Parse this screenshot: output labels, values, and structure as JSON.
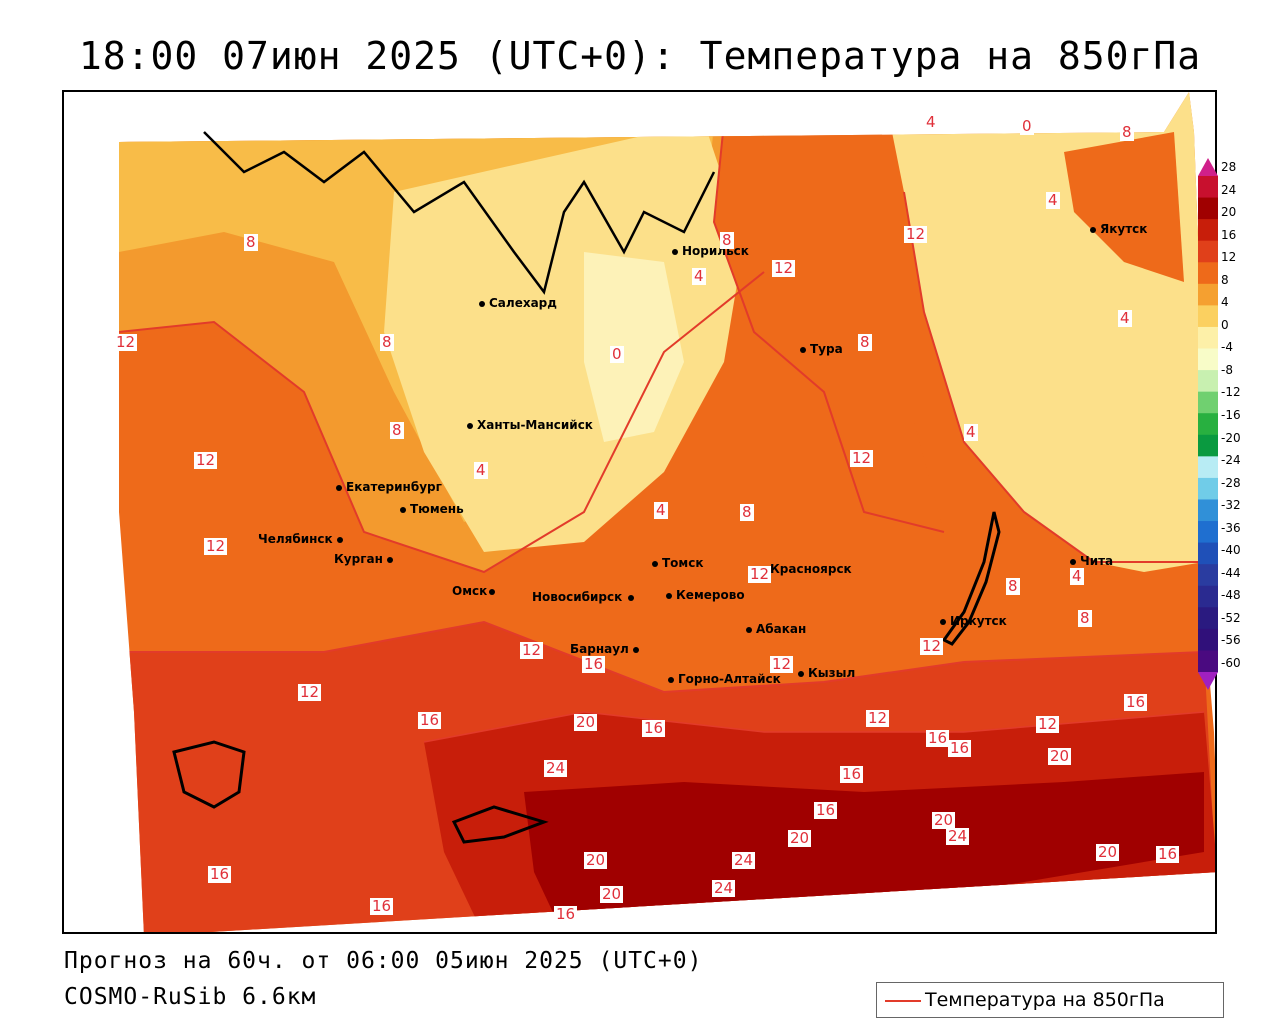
{
  "title": "18:00 07июн 2025 (UTC+0): Температура на 850гПа",
  "footer": {
    "forecast": "Прогноз на 60ч. от 06:00 05июн 2025 (UTC+0)",
    "model": "COSMO-RuSib 6.6км"
  },
  "legend": {
    "line_label": "Температура на 850гПа",
    "line_color": "#e23b2a"
  },
  "colorbar": {
    "levels": [
      "28",
      "24",
      "20",
      "16",
      "12",
      "8",
      "4",
      "0",
      "-4",
      "-8",
      "-12",
      "-16",
      "-20",
      "-24",
      "-28",
      "-32",
      "-36",
      "-40",
      "-44",
      "-48",
      "-52",
      "-56",
      "-60"
    ],
    "colors": [
      "#c8102e",
      "#a00000",
      "#c81e0a",
      "#e0401a",
      "#ee6a1a",
      "#f5a030",
      "#fbd060",
      "#fdf0a8",
      "#f8fcc8",
      "#c8f0b0",
      "#70d070",
      "#28b040",
      "#0a9a40",
      "#b8ecf4",
      "#70cce8",
      "#3090d8",
      "#1f6fd0",
      "#1f50b8",
      "#2a3ca0",
      "#2a2a90",
      "#2a1a80",
      "#30107a",
      "#4a0a80"
    ],
    "top_arrow_color": "#d0208a",
    "bottom_arrow_color": "#a020c0"
  },
  "cities": [
    {
      "name": "Норильск"
    },
    {
      "name": "Якутск"
    },
    {
      "name": "Салехард"
    },
    {
      "name": "Тура"
    },
    {
      "name": "Ханты-Мансийск"
    },
    {
      "name": "Екатеринбург"
    },
    {
      "name": "Тюмень"
    },
    {
      "name": "Челябинск"
    },
    {
      "name": "Курган"
    },
    {
      "name": "Омск"
    },
    {
      "name": "Томск"
    },
    {
      "name": "Красноярск"
    },
    {
      "name": "Новосибирск"
    },
    {
      "name": "Кемерово"
    },
    {
      "name": "Абакан"
    },
    {
      "name": "Иркутск"
    },
    {
      "name": "Чита"
    },
    {
      "name": "Барнаул"
    },
    {
      "name": "Кызыл"
    },
    {
      "name": "Горно-Алтайск"
    }
  ],
  "contour_labels": [
    "4",
    "0",
    "8",
    "8",
    "4",
    "12",
    "12",
    "8",
    "0",
    "8",
    "4",
    "4",
    "12",
    "8",
    "4",
    "12",
    "4",
    "8",
    "4",
    "12",
    "12",
    "8",
    "8",
    "4",
    "12",
    "12",
    "16",
    "12",
    "8",
    "12",
    "16",
    "20",
    "16",
    "12",
    "12",
    "16",
    "12",
    "16",
    "16",
    "20",
    "24",
    "16",
    "16",
    "20",
    "20",
    "24",
    "20",
    "24",
    "20",
    "24",
    "16",
    "20",
    "16",
    "16",
    "16"
  ]
}
